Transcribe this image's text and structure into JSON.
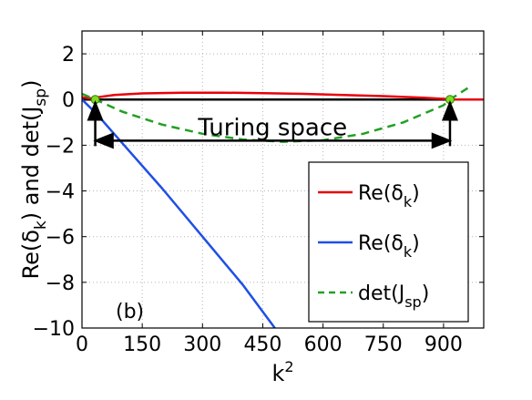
{
  "chart_data": {
    "type": "line",
    "panel_label": "(b)",
    "xlabel": "k",
    "xlabel_sup": "2",
    "ylabel_parts": [
      "Re(δ",
      "k",
      ") and det(J",
      "sp",
      ")"
    ],
    "xlim": [
      0,
      1000
    ],
    "ylim": [
      -10,
      3
    ],
    "x_ticks": [
      0,
      150,
      300,
      450,
      600,
      750,
      900
    ],
    "y_ticks": [
      2,
      0,
      -2,
      -4,
      -6,
      -8,
      -10
    ],
    "x_tick_labels": [
      "0",
      "150",
      "300",
      "450",
      "600",
      "750",
      "900"
    ],
    "y_tick_labels": [
      "2",
      "0",
      "−2",
      "−4",
      "−6",
      "−8",
      "−10"
    ],
    "grid": true,
    "legend_position": "bottom-right",
    "series": [
      {
        "name": "Re(δk)",
        "label_main": "Re(δ",
        "label_sub": "k",
        "label_end": ")",
        "color": "#e8000b",
        "style": "solid",
        "x": [
          0,
          20,
          40,
          80,
          150,
          250,
          350,
          450,
          550,
          650,
          750,
          850,
          900,
          916,
          1000
        ],
        "y": [
          0.1,
          0.05,
          0.1,
          0.2,
          0.27,
          0.3,
          0.3,
          0.28,
          0.25,
          0.2,
          0.15,
          0.08,
          0.03,
          0,
          0
        ]
      },
      {
        "name": "Re(δk)",
        "label_main": "Re(δ",
        "label_sub": "k",
        "label_end": ")",
        "color": "#1f4fe6",
        "style": "solid",
        "x": [
          0,
          35,
          100,
          200,
          300,
          400,
          480
        ],
        "y": [
          0,
          -0.6,
          -1.9,
          -3.9,
          -6.0,
          -8.1,
          -10
        ]
      },
      {
        "name": "det(Jsp)",
        "label_main": "det(J",
        "label_sub": "sp",
        "label_end": ")",
        "color": "#22a022",
        "style": "dashed",
        "x": [
          0,
          33,
          100,
          200,
          300,
          400,
          500,
          600,
          700,
          800,
          900,
          916,
          960
        ],
        "y": [
          0.25,
          0,
          -0.53,
          -1.1,
          -1.5,
          -1.75,
          -1.85,
          -1.78,
          -1.5,
          -1.0,
          -0.25,
          0,
          0.5
        ]
      }
    ],
    "markers": [
      {
        "x": 33,
        "y": 0,
        "color": "#7ddc1f"
      },
      {
        "x": 916,
        "y": 0,
        "color": "#7ddc1f"
      }
    ],
    "annotation": {
      "text": "Turing space",
      "k_start": 33,
      "k_end": 916,
      "arrow_level": -1.8
    }
  }
}
